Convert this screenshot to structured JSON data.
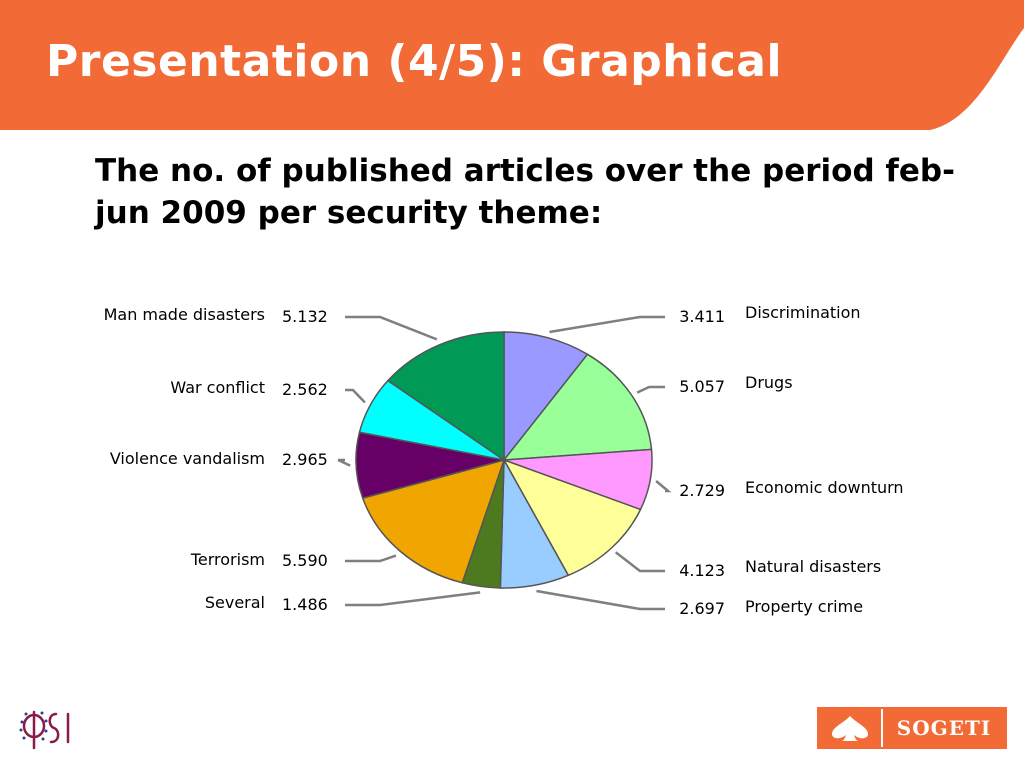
{
  "slide": {
    "title": "Presentation (4/5): Graphical",
    "header_color": "#f26a35"
  },
  "chart_data": {
    "type": "pie",
    "title": "The no. of published articles over the period feb-jun 2009 per security theme:",
    "slices": [
      {
        "label": "Discrimination",
        "value_label": "3.411",
        "value": 3.411,
        "color": "#9999ff"
      },
      {
        "label": "Drugs",
        "value_label": "5.057",
        "value": 5.057,
        "color": "#99ff99"
      },
      {
        "label": "Economic downturn",
        "value_label": "2.729",
        "value": 2.729,
        "color": "#ff99ff"
      },
      {
        "label": "Natural disasters",
        "value_label": "4.123",
        "value": 4.123,
        "color": "#ffff99"
      },
      {
        "label": "Property crime",
        "value_label": "2.697",
        "value": 2.697,
        "color": "#99ccff"
      },
      {
        "label": "Several",
        "value_label": "1.486",
        "value": 1.486,
        "color": "#4d7a1f"
      },
      {
        "label": "Terrorism",
        "value_label": "5.590",
        "value": 5.59,
        "color": "#f0a500"
      },
      {
        "label": "Violence vandalism",
        "value_label": "2.965",
        "value": 2.965,
        "color": "#660066"
      },
      {
        "label": "War conflict",
        "value_label": "2.562",
        "value": 2.562,
        "color": "#00ffff"
      },
      {
        "label": "Man made disasters",
        "value_label": "5.132",
        "value": 5.132,
        "color": "#009955"
      }
    ],
    "legend": "labels around the pie with leader lines"
  },
  "logos": {
    "left": {
      "name": "PSI logo",
      "text": "PSI"
    },
    "right": {
      "name": "Sogeti logo",
      "text": "SOGETI"
    }
  }
}
